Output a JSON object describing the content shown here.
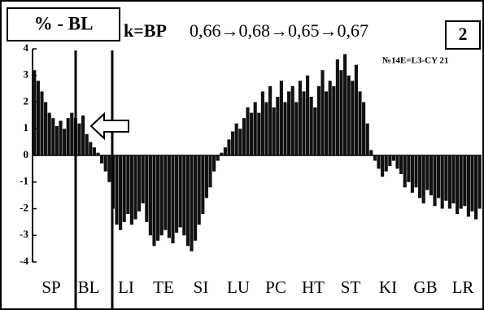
{
  "chart_data": {
    "type": "bar",
    "label_box": "% - BL",
    "title_k": "k=BP",
    "title_values": "0,66→0,68→0,65→0,67",
    "panel_number": "2",
    "annotation": "№14E=L3-CY 21",
    "color": "#111111",
    "ylim": [
      -4,
      4
    ],
    "yticks": [
      -4,
      -3,
      -2,
      -1,
      0,
      1,
      2,
      3,
      4
    ],
    "categories": [
      null,
      null,
      null,
      null,
      null,
      "SP",
      null,
      null,
      null,
      null,
      null,
      null,
      null,
      null,
      null,
      "BL",
      null,
      null,
      null,
      null,
      null,
      null,
      null,
      null,
      null,
      "LI",
      null,
      null,
      null,
      null,
      null,
      null,
      null,
      null,
      null,
      "TE",
      null,
      null,
      null,
      null,
      null,
      null,
      null,
      null,
      null,
      "SI",
      null,
      null,
      null,
      null,
      null,
      null,
      null,
      null,
      null,
      "LU",
      null,
      null,
      null,
      null,
      null,
      null,
      null,
      null,
      null,
      "PC",
      null,
      null,
      null,
      null,
      null,
      null,
      null,
      null,
      null,
      "HT",
      null,
      null,
      null,
      null,
      null,
      null,
      null,
      null,
      null,
      "ST",
      null,
      null,
      null,
      null,
      null,
      null,
      null,
      null,
      null,
      "KI",
      null,
      null,
      null,
      null,
      null,
      null,
      null,
      null,
      null,
      "GB",
      null,
      null,
      null,
      null,
      null,
      null,
      null,
      null,
      null,
      "LR",
      null,
      null,
      null,
      null
    ],
    "values": [
      3.2,
      2.8,
      2.4,
      2.0,
      1.6,
      1.4,
      1.1,
      1.3,
      1.0,
      1.4,
      1.6,
      1.4,
      1.2,
      1.5,
      0.8,
      0.5,
      0.3,
      0.1,
      -0.3,
      -0.6,
      -1.0,
      -2.0,
      -2.6,
      -2.8,
      -2.5,
      -2.2,
      -2.6,
      -2.4,
      -2.1,
      -1.8,
      -2.5,
      -3.0,
      -3.4,
      -3.2,
      -3.0,
      -2.8,
      -3.1,
      -3.3,
      -2.9,
      -2.7,
      -3.0,
      -3.4,
      -3.6,
      -3.2,
      -2.6,
      -2.2,
      -1.6,
      -1.2,
      -0.6,
      -0.2,
      0.1,
      0.3,
      0.6,
      0.9,
      1.2,
      1.0,
      1.4,
      1.8,
      1.6,
      2.0,
      1.6,
      2.4,
      2.0,
      2.6,
      1.8,
      2.2,
      2.8,
      2.0,
      2.4,
      2.6,
      2.0,
      2.8,
      2.4,
      3.0,
      2.2,
      1.8,
      2.6,
      3.2,
      2.4,
      2.8,
      2.6,
      3.6,
      3.2,
      3.8,
      3.0,
      2.8,
      3.4,
      2.4,
      2.0,
      1.2,
      0.2,
      -0.2,
      -0.5,
      -0.8,
      -0.6,
      -0.4,
      -0.2,
      -0.5,
      -0.7,
      -1.2,
      -1.0,
      -1.4,
      -1.2,
      -1.6,
      -1.8,
      -1.3,
      -1.5,
      -1.9,
      -1.6,
      -2.0,
      -1.7,
      -2.0,
      -1.8,
      -2.2,
      -2.0,
      -1.9,
      -2.3,
      -2.1,
      -2.4,
      -2.0
    ]
  }
}
